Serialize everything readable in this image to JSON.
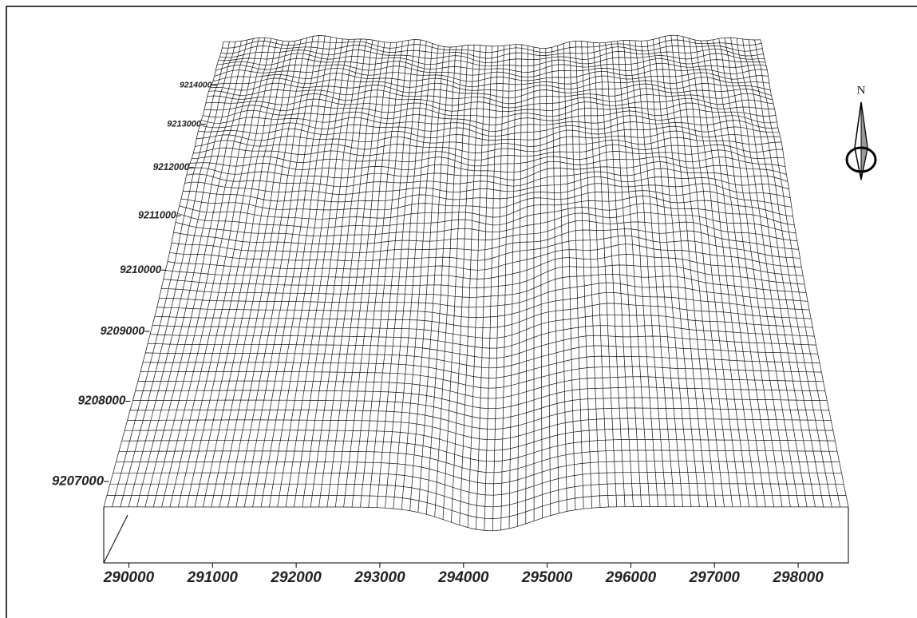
{
  "chart_data": {
    "type": "surface",
    "north_label": "N",
    "xlim": [
      289700,
      298600
    ],
    "xticks": [
      290000,
      291000,
      292000,
      293000,
      294000,
      295000,
      296000,
      297000,
      298000
    ],
    "ylim": [
      9206800,
      9214700
    ],
    "yticks": [
      9207000,
      9208000,
      9209000,
      9210000,
      9211000,
      9212000,
      9213000,
      9214000
    ]
  }
}
